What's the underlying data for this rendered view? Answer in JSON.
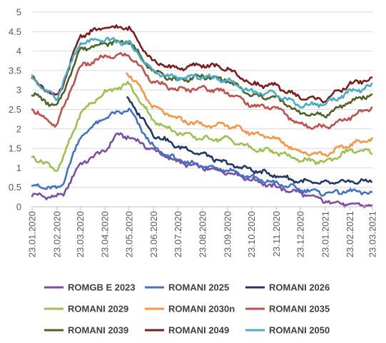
{
  "chart_data": {
    "type": "line",
    "title": "",
    "xlabel": "",
    "ylabel": "",
    "ylim": [
      0,
      5
    ],
    "y_ticks": [
      "0",
      "0.5",
      "1",
      "1.5",
      "2",
      "2.5",
      "3",
      "3.5",
      "4",
      "4.5",
      "5"
    ],
    "x_ticks": [
      "23.01.2020",
      "23.02.2020",
      "23.03.2020",
      "23.04.2020",
      "23.05.2020",
      "23.06.2020",
      "23.07.2020",
      "23.08.2020",
      "23.09.2020",
      "23.10.2020",
      "23.11.2020",
      "23.12.2020",
      "23.01.2021",
      "23.02.2021",
      "23.03.2021"
    ],
    "grid": "horizontal",
    "legend_position": "bottom",
    "series": [
      {
        "name": "ROMGB E 2023",
        "color": "#7B4FA6",
        "x": [
          "23.01.2020",
          "23.02.2020",
          "01.03.2020",
          "23.03.2020",
          "23.04.2020",
          "08.05.2020",
          "23.05.2020",
          "23.06.2020",
          "23.07.2020",
          "23.08.2020",
          "23.09.2020",
          "23.10.2020",
          "23.11.2020",
          "23.12.2020",
          "23.01.2021",
          "23.02.2021",
          "23.03.2021"
        ],
        "values": [
          0.3,
          0.25,
          0.3,
          1.1,
          1.45,
          1.85,
          1.8,
          1.45,
          1.15,
          1.0,
          0.9,
          0.7,
          0.5,
          0.35,
          0.15,
          0.05,
          0.05
        ]
      },
      {
        "name": "ROMANI 2025",
        "color": "#4472C4",
        "x": [
          "23.01.2020",
          "23.02.2020",
          "01.03.2020",
          "23.03.2020",
          "23.04.2020",
          "23.05.2020",
          "23.06.2020",
          "23.07.2020",
          "23.08.2020",
          "23.09.2020",
          "23.10.2020",
          "23.11.2020",
          "23.12.2020",
          "23.01.2021",
          "23.02.2021",
          "23.03.2021"
        ],
        "values": [
          0.55,
          0.45,
          0.6,
          1.8,
          2.3,
          2.5,
          1.5,
          1.2,
          1.05,
          0.95,
          0.75,
          0.6,
          0.45,
          0.35,
          0.4,
          0.35
        ]
      },
      {
        "name": "ROMANI 2026",
        "color": "#1F3864",
        "x": [
          "21.05.2020",
          "23.06.2020",
          "23.07.2020",
          "23.08.2020",
          "23.09.2020",
          "23.10.2020",
          "23.11.2020",
          "23.12.2020",
          "23.01.2021",
          "23.02.2021",
          "23.03.2021"
        ],
        "values": [
          2.8,
          1.85,
          1.55,
          1.35,
          1.1,
          0.95,
          0.8,
          0.65,
          0.6,
          0.65,
          0.65
        ]
      },
      {
        "name": "ROMANI 2029",
        "color": "#9BC152",
        "x": [
          "23.01.2020",
          "23.02.2020",
          "01.03.2020",
          "23.03.2020",
          "23.04.2020",
          "23.05.2020",
          "23.06.2020",
          "23.07.2020",
          "23.08.2020",
          "23.09.2020",
          "23.10.2020",
          "23.11.2020",
          "23.12.2020",
          "23.01.2021",
          "23.02.2021",
          "23.03.2021"
        ],
        "values": [
          1.3,
          0.95,
          1.2,
          2.4,
          2.95,
          3.15,
          2.2,
          1.9,
          1.75,
          1.75,
          1.5,
          1.4,
          1.2,
          1.15,
          1.45,
          1.4
        ]
      },
      {
        "name": "ROMANI 2030n",
        "color": "#F79646",
        "x": [
          "20.05.2020",
          "23.06.2020",
          "23.07.2020",
          "23.08.2020",
          "23.09.2020",
          "23.10.2020",
          "23.11.2020",
          "23.12.2020",
          "23.01.2021",
          "23.02.2021",
          "23.03.2021"
        ],
        "values": [
          3.5,
          2.55,
          2.25,
          2.1,
          2.1,
          1.9,
          1.75,
          1.4,
          1.35,
          1.6,
          1.75
        ]
      },
      {
        "name": "ROMANI 2035",
        "color": "#C0504D",
        "x": [
          "23.01.2020",
          "23.02.2020",
          "01.03.2020",
          "23.03.2020",
          "23.04.2020",
          "23.05.2020",
          "23.06.2020",
          "23.07.2020",
          "23.08.2020",
          "23.09.2020",
          "23.10.2020",
          "23.11.2020",
          "23.12.2020",
          "23.01.2021",
          "23.02.2021",
          "23.03.2021"
        ],
        "values": [
          2.5,
          2.05,
          2.5,
          3.6,
          3.85,
          3.9,
          3.2,
          3.0,
          3.05,
          2.95,
          2.6,
          2.55,
          2.1,
          2.05,
          2.3,
          2.55
        ]
      },
      {
        "name": "ROMANI 2039",
        "color": "#4F6228",
        "x": [
          "23.01.2020",
          "23.02.2020",
          "01.03.2020",
          "23.03.2020",
          "23.04.2020",
          "23.05.2020",
          "23.06.2020",
          "23.07.2020",
          "23.08.2020",
          "23.09.2020",
          "23.10.2020",
          "23.11.2020",
          "23.12.2020",
          "23.01.2021",
          "23.02.2021",
          "23.03.2021"
        ],
        "values": [
          2.9,
          2.55,
          2.9,
          4.05,
          4.2,
          4.25,
          3.45,
          3.25,
          3.35,
          3.25,
          2.85,
          2.8,
          2.4,
          2.35,
          2.7,
          2.9
        ]
      },
      {
        "name": "ROMANI 2049",
        "color": "#7B1E1E",
        "x": [
          "23.01.2020",
          "23.02.2020",
          "01.03.2020",
          "23.03.2020",
          "23.04.2020",
          "23.05.2020",
          "23.06.2020",
          "23.07.2020",
          "23.08.2020",
          "23.09.2020",
          "23.10.2020",
          "23.11.2020",
          "23.12.2020",
          "23.01.2021",
          "23.02.2021",
          "23.03.2021"
        ],
        "values": [
          3.3,
          2.8,
          3.1,
          4.4,
          4.6,
          4.6,
          3.7,
          3.55,
          3.65,
          3.55,
          3.15,
          3.1,
          2.8,
          2.75,
          3.15,
          3.3
        ]
      },
      {
        "name": "ROMANI 2050",
        "color": "#4BACC6",
        "x": [
          "23.01.2020",
          "23.02.2020",
          "01.03.2020",
          "23.03.2020",
          "23.04.2020",
          "23.05.2020",
          "23.06.2020",
          "23.07.2020",
          "23.08.2020",
          "23.09.2020",
          "23.10.2020",
          "23.11.2020",
          "23.12.2020",
          "23.01.2021",
          "23.02.2021",
          "23.03.2021"
        ],
        "values": [
          3.3,
          2.75,
          3.2,
          4.2,
          4.3,
          4.2,
          3.45,
          3.3,
          3.35,
          3.25,
          2.95,
          2.9,
          2.6,
          2.65,
          2.95,
          3.1
        ]
      }
    ]
  }
}
